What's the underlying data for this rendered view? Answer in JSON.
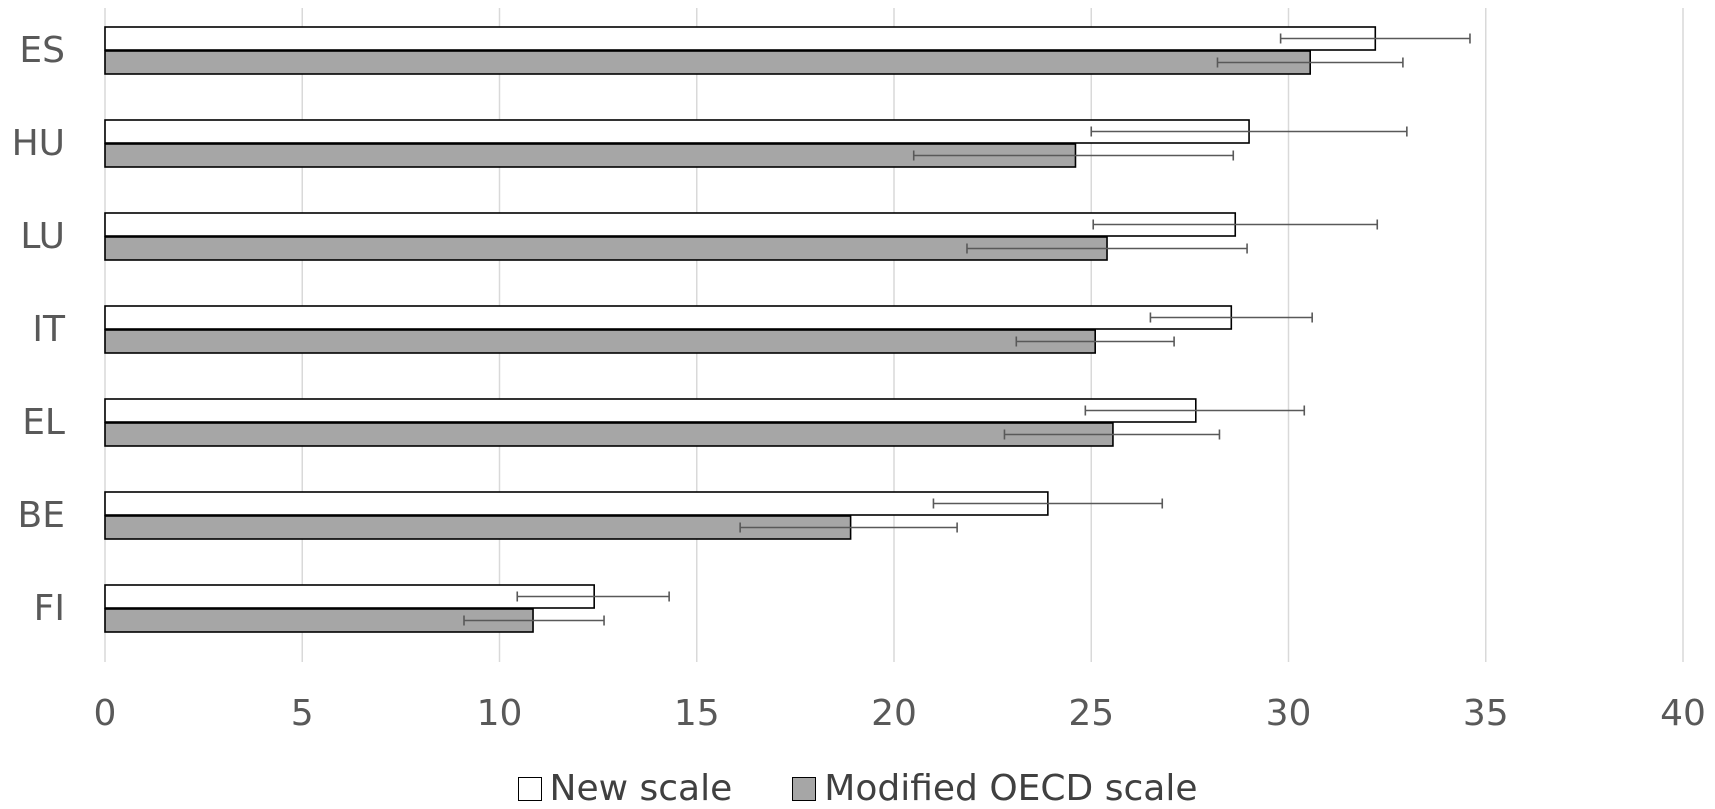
{
  "chart_data": {
    "type": "bar",
    "orientation": "horizontal",
    "categories": [
      "ES",
      "HU",
      "LU",
      "IT",
      "EL",
      "BE",
      "FI"
    ],
    "series": [
      {
        "name": "New scale",
        "values": [
          32.2,
          29.0,
          28.65,
          28.55,
          27.65,
          23.9,
          12.4
        ],
        "error_low": [
          29.8,
          25.0,
          25.05,
          26.5,
          24.85,
          21.0,
          10.45
        ],
        "error_high": [
          34.6,
          33.0,
          32.25,
          30.6,
          30.4,
          26.8,
          14.3
        ],
        "color": "#ffffff"
      },
      {
        "name": "Modified OECD scale",
        "values": [
          30.55,
          24.6,
          25.4,
          25.1,
          25.55,
          18.9,
          10.85
        ],
        "error_low": [
          28.2,
          20.5,
          21.85,
          23.1,
          22.8,
          16.1,
          9.1
        ],
        "error_high": [
          32.9,
          28.6,
          28.95,
          27.1,
          28.25,
          21.6,
          12.65
        ],
        "color": "#a6a6a6"
      }
    ],
    "x_ticks": [
      "0",
      "5",
      "10",
      "15",
      "20",
      "25",
      "30",
      "35",
      "40"
    ],
    "xlim": [
      0,
      40
    ],
    "grid": "vertical",
    "legend_position": "bottom",
    "title": "",
    "xlabel": "",
    "ylabel": ""
  }
}
